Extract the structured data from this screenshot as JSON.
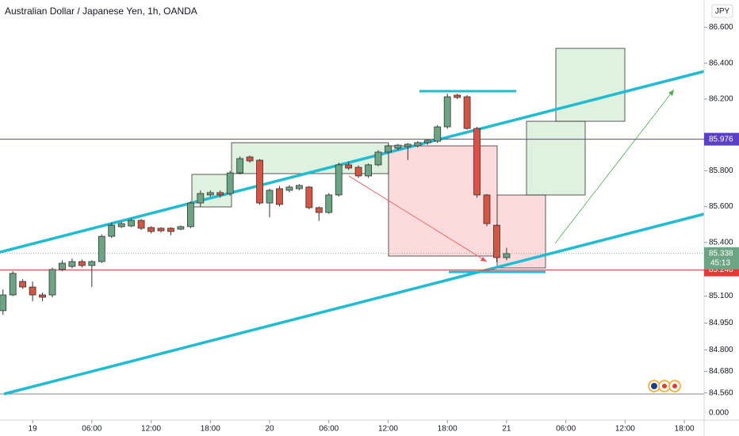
{
  "chart_data": {
    "type": "candlestick",
    "title": "Australian Dollar / Japanese Yen, 1h, OANDA",
    "currency_label": "JPY",
    "x": [
      -3,
      -2,
      -1,
      0,
      1,
      2,
      3,
      4,
      5,
      6,
      7,
      8,
      9,
      10,
      11,
      12,
      13,
      14,
      15,
      16,
      17,
      18,
      19,
      20,
      21,
      22,
      23,
      24,
      25,
      26,
      27,
      28,
      29,
      30,
      31,
      32,
      33,
      34,
      35,
      36,
      37,
      38,
      39,
      40,
      41,
      42,
      43,
      44,
      45,
      46,
      47,
      48
    ],
    "open": [
      85.019,
      85.107,
      85.182,
      85.151,
      85.107,
      85.107,
      85.249,
      85.266,
      85.293,
      85.271,
      85.293,
      85.434,
      85.488,
      85.492,
      85.523,
      85.483,
      85.479,
      85.479,
      85.474,
      85.488,
      85.62,
      85.665,
      85.678,
      85.673,
      85.788,
      85.877,
      85.859,
      85.62,
      85.7,
      85.691,
      85.7,
      85.709,
      85.594,
      85.567,
      85.665,
      85.833,
      85.819,
      85.771,
      85.833,
      85.904,
      85.926,
      85.935,
      85.939,
      85.957,
      85.965,
      86.045,
      86.222,
      86.213,
      86.036,
      85.665,
      85.496,
      85.315
    ],
    "high": [
      85.138,
      85.24,
      85.195,
      85.182,
      85.12,
      85.26,
      85.3,
      85.31,
      85.305,
      85.3,
      85.445,
      85.51,
      85.515,
      85.53,
      85.53,
      85.49,
      85.485,
      85.485,
      85.495,
      85.63,
      85.69,
      85.69,
      85.69,
      85.8,
      85.88,
      85.885,
      85.865,
      85.7,
      85.715,
      85.72,
      85.725,
      85.715,
      85.6,
      85.675,
      85.845,
      85.85,
      85.83,
      85.84,
      85.915,
      85.945,
      85.95,
      85.955,
      85.965,
      85.975,
      86.055,
      86.23,
      86.23,
      86.222,
      86.045,
      85.67,
      85.5,
      85.37
    ],
    "low": [
      84.996,
      85.1,
      85.14,
      85.072,
      85.072,
      85.094,
      85.24,
      85.255,
      85.26,
      85.151,
      85.285,
      85.425,
      85.48,
      85.485,
      85.47,
      85.45,
      85.455,
      85.44,
      85.468,
      85.48,
      85.6,
      85.655,
      85.65,
      85.66,
      85.78,
      85.845,
      85.61,
      85.54,
      85.6,
      85.68,
      85.69,
      85.585,
      85.52,
      85.56,
      85.655,
      85.805,
      85.76,
      85.76,
      85.825,
      85.895,
      85.915,
      85.86,
      85.93,
      85.945,
      85.955,
      86.035,
      86.2,
      86.03,
      85.65,
      85.49,
      85.29,
      85.3
    ],
    "close": [
      85.107,
      85.227,
      85.151,
      85.107,
      85.094,
      85.249,
      85.284,
      85.293,
      85.271,
      85.293,
      85.434,
      85.496,
      85.505,
      85.523,
      85.479,
      85.461,
      85.465,
      85.461,
      85.488,
      85.62,
      85.673,
      85.678,
      85.665,
      85.788,
      85.868,
      85.855,
      85.62,
      85.691,
      85.612,
      85.709,
      85.718,
      85.594,
      85.567,
      85.665,
      85.833,
      85.815,
      85.771,
      85.833,
      85.904,
      85.939,
      85.943,
      85.948,
      85.957,
      85.97,
      86.045,
      86.213,
      86.209,
      86.036,
      85.665,
      85.505,
      85.315,
      85.338
    ],
    "up_color": "#6ba583",
    "down_color": "#d75442",
    "xlim": [
      -3.3,
      68
    ],
    "xticks": [
      {
        "value": 0,
        "label": "19"
      },
      {
        "value": 6,
        "label": "06:00"
      },
      {
        "value": 12,
        "label": "12:00"
      },
      {
        "value": 18,
        "label": "18:00"
      },
      {
        "value": 24,
        "label": "20"
      },
      {
        "value": 30,
        "label": "06:00"
      },
      {
        "value": 36,
        "label": "12:00"
      },
      {
        "value": 42,
        "label": "18:00"
      },
      {
        "value": 48,
        "label": "21"
      },
      {
        "value": 54,
        "label": "06:00"
      },
      {
        "value": 60,
        "label": "12:00"
      },
      {
        "value": 66,
        "label": "18:00"
      }
    ],
    "ylim": [
      84.408,
      86.753
    ],
    "yticks": [
      {
        "value": 86.6,
        "label": "86.600"
      },
      {
        "value": 86.4,
        "label": "86.400"
      },
      {
        "value": 86.2,
        "label": "86.200"
      },
      {
        "value": 85.8,
        "label": "85.800"
      },
      {
        "value": 85.6,
        "label": "85.600"
      },
      {
        "value": 85.4,
        "label": "85.400"
      },
      {
        "value": 85.1,
        "label": "85.100"
      },
      {
        "value": 84.95,
        "label": "84.950"
      },
      {
        "value": 84.8,
        "label": "84.800"
      },
      {
        "value": 84.68,
        "label": "84.680"
      },
      {
        "value": 84.56,
        "label": "84.560"
      }
    ],
    "scale_base_label": "0.000",
    "price_lines": [
      {
        "value": 85.976,
        "label": "85.976",
        "color": "#5b3fc4"
      },
      {
        "value": 85.246,
        "label": "85.246",
        "color": "#e53935"
      }
    ],
    "last_price": {
      "value": 85.338,
      "label": "85.338",
      "countdown": "45:13",
      "color": "#6ba583"
    }
  }
}
